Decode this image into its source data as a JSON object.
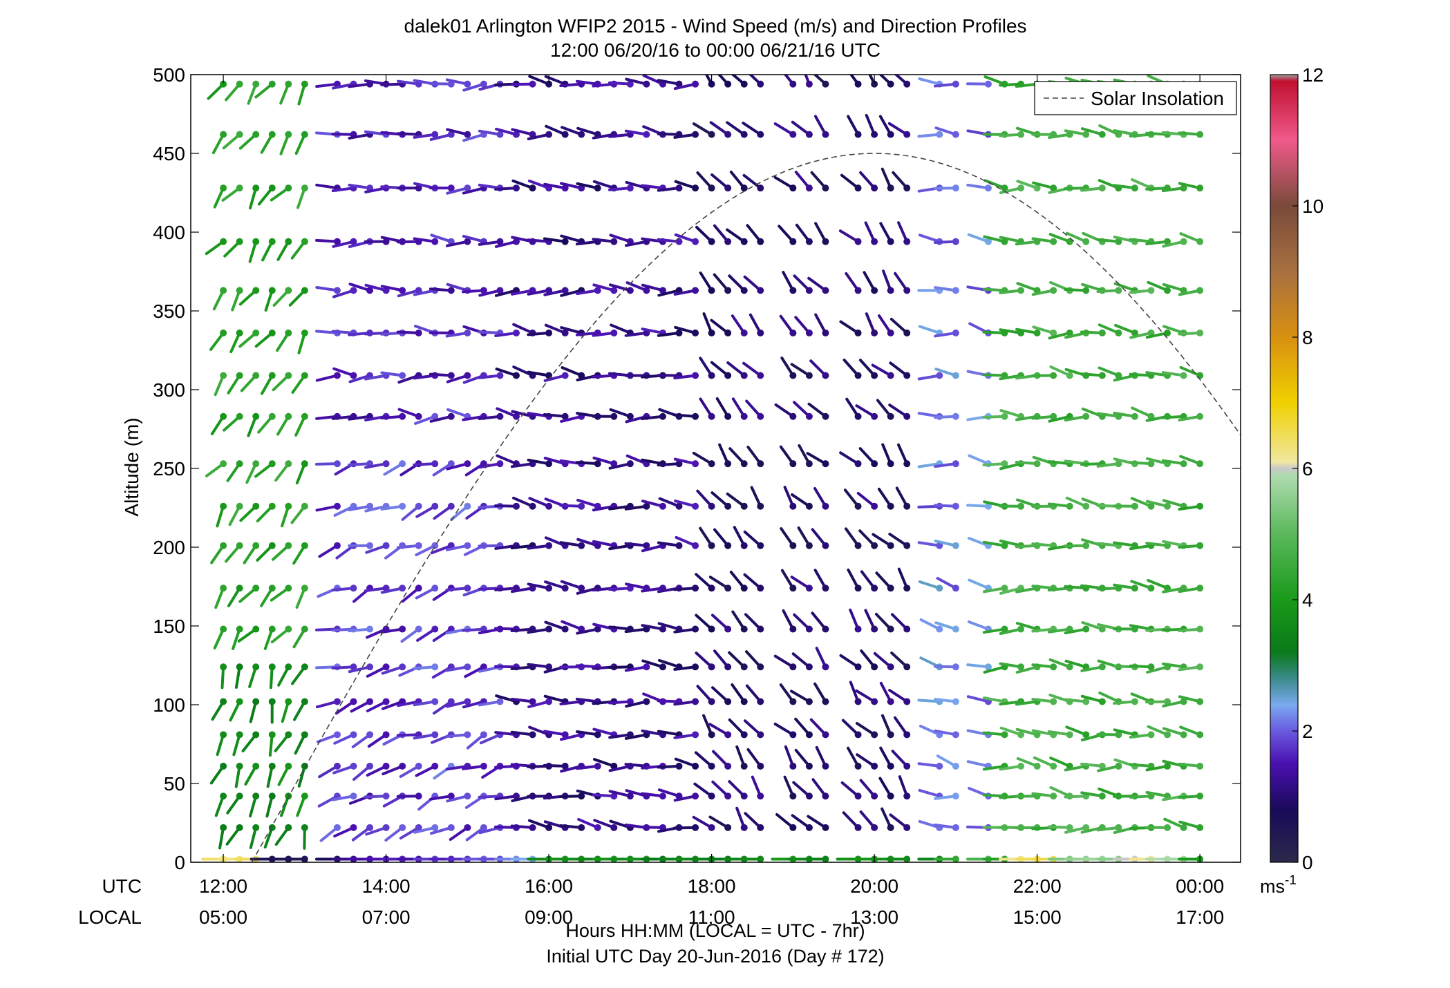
{
  "chart_data": {
    "type": "wind-barb-profile",
    "title_line1": "dalek01 Arlington WFIP2 2015 - Wind Speed (m/s) and Direction Profiles",
    "title_line2": "12:00 06/20/16 to 00:00 06/21/16  UTC",
    "ylabel": "Altitude (m)",
    "ylim": [
      0,
      500
    ],
    "y_ticks": [
      "0",
      "50",
      "100",
      "150",
      "200",
      "250",
      "300",
      "350",
      "400",
      "450",
      "500"
    ],
    "x_range_hours_utc": [
      11.6,
      24.5
    ],
    "x_ticks": [
      {
        "hour": 12,
        "utc": "12:00",
        "local": "05:00"
      },
      {
        "hour": 14,
        "utc": "14:00",
        "local": "07:00"
      },
      {
        "hour": 16,
        "utc": "16:00",
        "local": "09:00"
      },
      {
        "hour": 18,
        "utc": "18:00",
        "local": "11:00"
      },
      {
        "hour": 20,
        "utc": "20:00",
        "local": "13:00"
      },
      {
        "hour": 22,
        "utc": "22:00",
        "local": "15:00"
      },
      {
        "hour": 24,
        "utc": "00:00",
        "local": "17:00"
      }
    ],
    "row_label_utc": "UTC",
    "row_label_local": "LOCAL",
    "xlabel_line1": "Hours HH:MM  (LOCAL = UTC - 7hr)",
    "xlabel_line2": "Initial UTC Day 20-Jun-2016 (Day # 172)",
    "legend": {
      "entry": "Solar Insolation",
      "placement": "top-right",
      "line_style": "dashed"
    },
    "solar_insolation_curve": {
      "rise_hour_utc": 12.35,
      "peak_hour_utc": 20.0,
      "peak_altitude_equiv": 450,
      "set_hour_utc": 24.5,
      "end_altitude_equiv": 254
    },
    "colorbar": {
      "min": 0,
      "max": 12,
      "ticks": [
        "0",
        "2",
        "4",
        "6",
        "8",
        "10",
        "12"
      ],
      "unit": "ms",
      "unit_exponent": "-1",
      "stops": [
        {
          "v": 0.0,
          "c": "#2a2a4a"
        },
        {
          "v": 0.8,
          "c": "#1a0a5a"
        },
        {
          "v": 1.5,
          "c": "#4a10b0"
        },
        {
          "v": 2.0,
          "c": "#6a5ae0"
        },
        {
          "v": 2.4,
          "c": "#7aaaf0"
        },
        {
          "v": 2.8,
          "c": "#3a8a8a"
        },
        {
          "v": 3.2,
          "c": "#0a7a1a"
        },
        {
          "v": 4.0,
          "c": "#1a9a1a"
        },
        {
          "v": 5.0,
          "c": "#5ab85a"
        },
        {
          "v": 5.9,
          "c": "#b0dcb0"
        },
        {
          "v": 6.0,
          "c": "#c8c8c8"
        },
        {
          "v": 6.1,
          "c": "#f0e8a0"
        },
        {
          "v": 7.0,
          "c": "#f0d000"
        },
        {
          "v": 8.0,
          "c": "#d89010"
        },
        {
          "v": 9.0,
          "c": "#a87040"
        },
        {
          "v": 10.0,
          "c": "#7a4a3a"
        },
        {
          "v": 11.0,
          "c": "#f05a8a"
        },
        {
          "v": 11.9,
          "c": "#c01030"
        },
        {
          "v": 12.0,
          "c": "#a0a0a0"
        }
      ]
    },
    "profile_times_hours_utc": [
      12.0,
      12.2,
      12.4,
      12.6,
      12.8,
      13.0,
      13.2,
      13.4,
      13.6,
      13.8,
      14.0,
      14.2,
      14.4,
      14.6,
      14.8,
      15.0,
      15.2,
      15.4,
      15.6,
      15.8,
      16.0,
      16.2,
      16.4,
      16.6,
      16.8,
      17.0,
      17.2,
      17.4,
      17.6,
      17.8,
      18.0,
      18.2,
      18.4,
      18.6,
      18.8,
      19.0,
      19.2,
      19.4,
      19.6,
      19.8,
      20.0,
      20.2,
      20.4,
      20.6,
      20.8,
      21.0,
      21.2,
      21.4,
      21.6,
      21.8,
      22.0,
      22.2,
      22.4,
      22.6,
      22.8,
      23.0,
      23.2,
      23.4,
      23.6,
      23.8,
      24.0
    ],
    "altitudes_m": [
      2,
      22,
      42,
      61,
      81,
      102,
      124,
      148,
      174,
      201,
      226,
      253,
      283,
      309,
      336,
      363,
      394,
      428,
      462,
      494
    ],
    "wind_regimes": [
      {
        "time_utc": [
          12.0,
          13.4
        ],
        "altitude_m": [
          0,
          130
        ],
        "speed_ms": 3.6,
        "direction_deg": 200
      },
      {
        "time_utc": [
          12.0,
          13.4
        ],
        "altitude_m": [
          130,
          500
        ],
        "speed_ms": 4.2,
        "direction_deg": 215
      },
      {
        "time_utc": [
          13.4,
          15.6
        ],
        "altitude_m": [
          0,
          260
        ],
        "speed_ms": 1.8,
        "direction_deg": 250
      },
      {
        "time_utc": [
          13.4,
          15.6
        ],
        "altitude_m": [
          260,
          500
        ],
        "speed_ms": 1.6,
        "direction_deg": 270
      },
      {
        "time_utc": [
          15.6,
          18.0
        ],
        "altitude_m": [
          0,
          500
        ],
        "speed_ms": 1.2,
        "direction_deg": 275
      },
      {
        "time_utc": [
          18.0,
          20.8
        ],
        "altitude_m": [
          0,
          500
        ],
        "speed_ms": 0.9,
        "direction_deg": 320
      },
      {
        "time_utc": [
          20.8,
          21.6
        ],
        "altitude_m": [
          0,
          500
        ],
        "speed_ms": 2.2,
        "direction_deg": 280
      },
      {
        "time_utc": [
          21.6,
          24.0
        ],
        "altitude_m": [
          0,
          500
        ],
        "speed_ms": 4.6,
        "direction_deg": 275
      }
    ],
    "surface_level_speeds_ms": {
      "2": [
        6.4,
        6.3,
        6.5,
        0.5,
        0.6,
        0.5,
        0.8,
        0.7,
        1.2,
        1.4,
        1.5,
        1.6,
        1.4,
        1.8,
        1.6,
        1.7,
        2.0,
        1.9,
        2.2,
        2.4,
        3.6,
        3.8,
        3.7,
        3.5,
        3.9,
        3.6,
        3.8,
        3.2,
        3.4,
        3.6,
        3.4,
        3.2,
        3.5,
        3.6,
        3.9,
        4.0,
        3.6,
        3.4,
        3.5,
        3.8,
        3.9,
        3.8,
        3.6,
        3.4,
        3.5,
        4.4,
        4.6,
        4.8,
        4.2,
        6.2,
        6.5,
        6.6,
        5.4,
        5.6,
        5.7,
        5.5,
        6.0,
        6.2,
        5.9,
        5.8,
        4.0
      ]
    },
    "missing_profiles_hours_utc": [
      13.2,
      18.8,
      19.6,
      20.6,
      21.2
    ]
  }
}
